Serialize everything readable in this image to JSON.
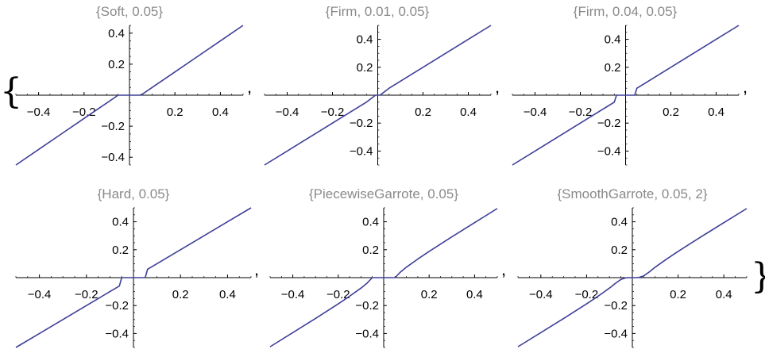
{
  "list_open": "{",
  "list_close": "}",
  "separator": ",",
  "style": {
    "line_color": "#3f3f99",
    "axis_color": "#000000",
    "title_color": "#8a8a8a"
  },
  "chart_data": [
    {
      "type": "line",
      "title": "{Soft, 0.05}",
      "method": "Soft",
      "threshold": 0.05,
      "xlim": [
        -0.5,
        0.5
      ],
      "ylim": [
        -0.45,
        0.45
      ],
      "xticks": [
        -0.4,
        -0.2,
        0.2,
        0.4
      ],
      "xtick_labels": [
        "−0.4",
        "−0.2",
        "0.2",
        "0.4"
      ],
      "yticks": [
        -0.4,
        -0.2,
        0.2,
        0.4
      ],
      "ytick_labels": [
        "−0.4",
        "−0.2",
        "0.2",
        "0.4"
      ],
      "grid": false,
      "x": [
        -0.5,
        -0.4,
        -0.3,
        -0.2,
        -0.1,
        -0.05,
        0,
        0.05,
        0.1,
        0.2,
        0.3,
        0.4,
        0.5
      ],
      "y": [
        -0.45,
        -0.35,
        -0.25,
        -0.15,
        -0.05,
        0,
        0,
        0,
        0.05,
        0.15,
        0.25,
        0.35,
        0.45
      ]
    },
    {
      "type": "line",
      "title": "{Firm, 0.01, 0.05}",
      "method": "Firm",
      "threshold": [
        0.01,
        0.05
      ],
      "xlim": [
        -0.5,
        0.5
      ],
      "ylim": [
        -0.5,
        0.5
      ],
      "xticks": [
        -0.4,
        -0.2,
        0.2,
        0.4
      ],
      "xtick_labels": [
        "−0.4",
        "−0.2",
        "0.2",
        "0.4"
      ],
      "yticks": [
        -0.4,
        -0.2,
        0.2,
        0.4
      ],
      "ytick_labels": [
        "−0.4",
        "−0.2",
        "0.2",
        "0.4"
      ],
      "grid": false,
      "x": [
        -0.5,
        -0.4,
        -0.3,
        -0.2,
        -0.1,
        -0.05,
        -0.03,
        -0.01,
        0,
        0.01,
        0.03,
        0.05,
        0.1,
        0.2,
        0.3,
        0.4,
        0.5
      ],
      "y": [
        -0.5,
        -0.4,
        -0.3,
        -0.2,
        -0.1,
        -0.05,
        -0.025,
        0,
        0,
        0,
        0.025,
        0.05,
        0.1,
        0.2,
        0.3,
        0.4,
        0.5
      ]
    },
    {
      "type": "line",
      "title": "{Firm, 0.04, 0.05}",
      "method": "Firm",
      "threshold": [
        0.04,
        0.05
      ],
      "xlim": [
        -0.5,
        0.5
      ],
      "ylim": [
        -0.5,
        0.5
      ],
      "xticks": [
        -0.4,
        -0.2,
        0.2,
        0.4
      ],
      "xtick_labels": [
        "−0.4",
        "−0.2",
        "0.2",
        "0.4"
      ],
      "yticks": [
        -0.4,
        -0.2,
        0.2,
        0.4
      ],
      "ytick_labels": [
        "−0.4",
        "−0.2",
        "0.2",
        "0.4"
      ],
      "grid": false,
      "x": [
        -0.5,
        -0.4,
        -0.3,
        -0.2,
        -0.1,
        -0.05,
        -0.04,
        0,
        0.04,
        0.05,
        0.1,
        0.2,
        0.3,
        0.4,
        0.5
      ],
      "y": [
        -0.5,
        -0.4,
        -0.3,
        -0.2,
        -0.1,
        -0.05,
        0,
        0,
        0,
        0.05,
        0.1,
        0.2,
        0.3,
        0.4,
        0.5
      ]
    },
    {
      "type": "line",
      "title": "{Hard, 0.05}",
      "method": "Hard",
      "threshold": 0.05,
      "xlim": [
        -0.5,
        0.5
      ],
      "ylim": [
        -0.5,
        0.5
      ],
      "xticks": [
        -0.4,
        -0.2,
        0.2,
        0.4
      ],
      "xtick_labels": [
        "−0.4",
        "−0.2",
        "0.2",
        "0.4"
      ],
      "yticks": [
        -0.4,
        -0.2,
        0.2,
        0.4
      ],
      "ytick_labels": [
        "−0.4",
        "−0.2",
        "0.2",
        "0.4"
      ],
      "grid": false,
      "x": [
        -0.5,
        -0.4,
        -0.3,
        -0.2,
        -0.1,
        -0.06,
        -0.05,
        0,
        0.05,
        0.06,
        0.1,
        0.2,
        0.3,
        0.4,
        0.5
      ],
      "y": [
        -0.5,
        -0.4,
        -0.3,
        -0.2,
        -0.1,
        -0.06,
        0,
        0,
        0,
        0.06,
        0.1,
        0.2,
        0.3,
        0.4,
        0.5
      ]
    },
    {
      "type": "line",
      "title": "{PiecewiseGarrote, 0.05}",
      "method": "PiecewiseGarrote",
      "threshold": 0.05,
      "xlim": [
        -0.5,
        0.5
      ],
      "ylim": [
        -0.5,
        0.5
      ],
      "xticks": [
        -0.4,
        -0.2,
        0.2,
        0.4
      ],
      "xtick_labels": [
        "−0.4",
        "−0.2",
        "0.2",
        "0.4"
      ],
      "yticks": [
        -0.4,
        -0.2,
        0.2,
        0.4
      ],
      "ytick_labels": [
        "−0.4",
        "−0.2",
        "0.2",
        "0.4"
      ],
      "grid": false,
      "x": [
        -0.5,
        -0.4,
        -0.3,
        -0.2,
        -0.15,
        -0.1,
        -0.075,
        -0.05,
        0,
        0.05,
        0.075,
        0.1,
        0.15,
        0.2,
        0.3,
        0.4,
        0.5
      ],
      "y": [
        -0.495,
        -0.394,
        -0.292,
        -0.188,
        -0.133,
        -0.075,
        -0.042,
        0,
        0,
        0,
        0.042,
        0.075,
        0.133,
        0.188,
        0.292,
        0.394,
        0.495
      ]
    },
    {
      "type": "line",
      "title": "{SmoothGarrote, 0.05, 2}",
      "method": "SmoothGarrote",
      "threshold": [
        0.05,
        2
      ],
      "xlim": [
        -0.5,
        0.5
      ],
      "ylim": [
        -0.5,
        0.5
      ],
      "xticks": [
        -0.4,
        -0.2,
        0.2,
        0.4
      ],
      "xtick_labels": [
        "−0.4",
        "−0.2",
        "0.2",
        "0.4"
      ],
      "yticks": [
        -0.4,
        -0.2,
        0.2,
        0.4
      ],
      "ytick_labels": [
        "−0.4",
        "−0.2",
        "0.2",
        "0.4"
      ],
      "grid": false,
      "x": [
        -0.5,
        -0.4,
        -0.3,
        -0.2,
        -0.15,
        -0.1,
        -0.075,
        -0.05,
        -0.03,
        -0.015,
        0,
        0.015,
        0.03,
        0.05,
        0.075,
        0.1,
        0.15,
        0.2,
        0.3,
        0.4,
        0.5
      ],
      "y": [
        -0.495,
        -0.394,
        -0.292,
        -0.188,
        -0.133,
        -0.075,
        -0.042,
        -0.013,
        -0.002,
        0,
        0,
        0,
        0.002,
        0.013,
        0.042,
        0.075,
        0.133,
        0.188,
        0.292,
        0.394,
        0.495
      ]
    }
  ]
}
